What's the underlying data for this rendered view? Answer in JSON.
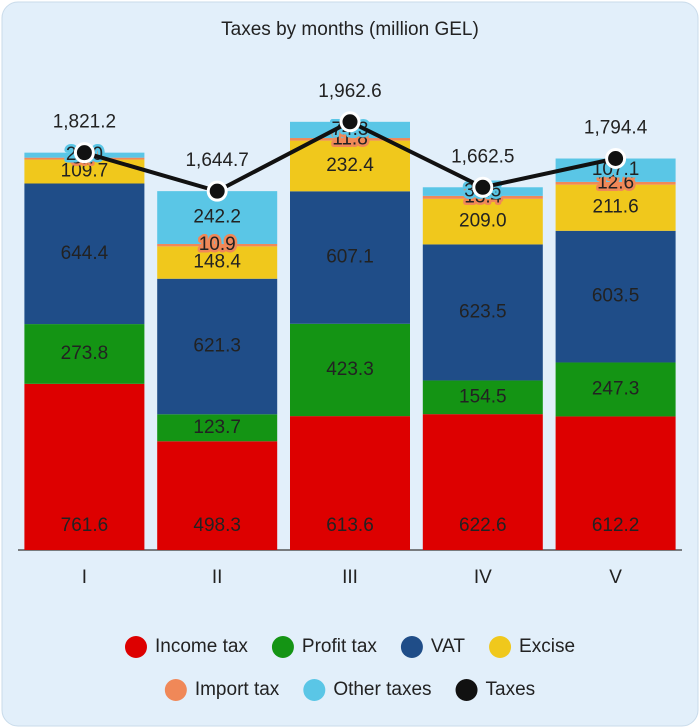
{
  "chart_data": {
    "type": "bar",
    "stacked": true,
    "title": "Taxes by months (million GEL)",
    "categories": [
      "I",
      "II",
      "III",
      "IV",
      "V"
    ],
    "ylim": [
      0,
      2200
    ],
    "series": [
      {
        "name": "Income tax",
        "color": "#dd0000",
        "values": [
          761.6,
          498.3,
          613.6,
          622.6,
          612.2
        ]
      },
      {
        "name": "Profit tax",
        "color": "#149414",
        "values": [
          273.8,
          123.7,
          423.3,
          154.5,
          247.3
        ]
      },
      {
        "name": "VAT",
        "color": "#1f4d88",
        "values": [
          644.4,
          621.3,
          607.1,
          623.5,
          603.5
        ]
      },
      {
        "name": "Excise",
        "color": "#f0c81c",
        "values": [
          109.7,
          148.4,
          232.4,
          209.0,
          211.6
        ],
        "value_labels": [
          "109.7",
          "148.4",
          "232.4",
          "209.0",
          "211.6"
        ]
      },
      {
        "name": "Import tax",
        "color": "#f08858",
        "values": [
          8.7,
          10.9,
          11.8,
          13.4,
          12.6
        ]
      },
      {
        "name": "Other taxes",
        "color": "#5ac6e6",
        "values": [
          23.0,
          242.2,
          74.3,
          39.5,
          107.1
        ],
        "value_labels": [
          "23.0",
          "242.2",
          "74.3",
          "39.5",
          "107.1"
        ]
      },
      {
        "name": "Taxes",
        "type": "line",
        "color": "#111111",
        "values": [
          1821.2,
          1644.7,
          1962.6,
          1662.5,
          1794.4
        ],
        "value_labels": [
          "1,821.2",
          "1,644.7",
          "1,962.6",
          "1,662.5",
          "1,794.4"
        ]
      }
    ]
  }
}
